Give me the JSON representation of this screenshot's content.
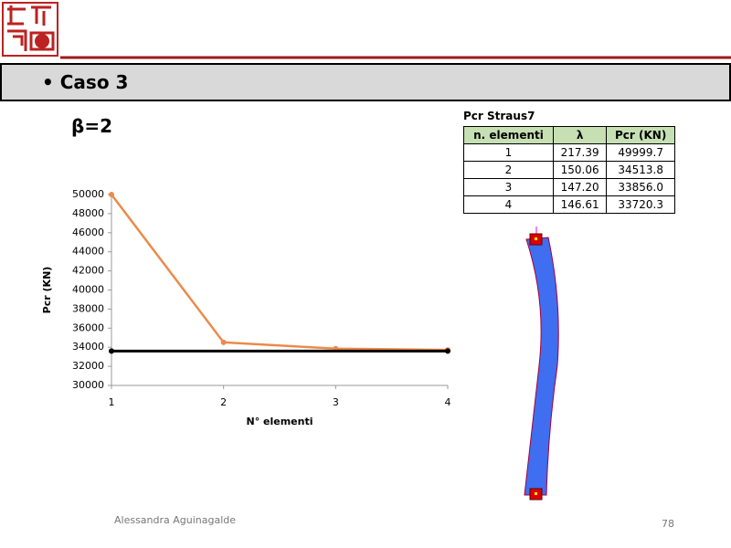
{
  "header": {
    "bullet": "Caso 3"
  },
  "beta_label": "β=2",
  "table": {
    "title": "Pcr Straus7",
    "columns": [
      "n. elementi",
      "λ",
      "Pcr (KN)"
    ],
    "rows": [
      [
        "1",
        "217.39",
        "49999.7"
      ],
      [
        "2",
        "150.06",
        "34513.8"
      ],
      [
        "3",
        "147.20",
        "33856.0"
      ],
      [
        "4",
        "146.61",
        "33720.3"
      ]
    ]
  },
  "chart_data": {
    "type": "line",
    "ylabel": "Pcr (KN)",
    "xlabel": "N° elementi",
    "x": [
      1,
      2,
      3,
      4
    ],
    "series": [
      {
        "color": "#eb8a4a",
        "values": [
          49999.7,
          34513.8,
          33856.0,
          33720.3
        ]
      },
      {
        "color": "#000000",
        "values": [
          33600,
          33600,
          33600,
          33600
        ]
      }
    ],
    "xlim": [
      1,
      4
    ],
    "xticks": [
      1,
      2,
      3,
      4
    ],
    "ylim": [
      30000,
      50000
    ],
    "yticks": [
      30000,
      32000,
      34000,
      36000,
      38000,
      40000,
      42000,
      44000,
      46000,
      48000,
      50000
    ]
  },
  "footer": {
    "author": "Alessandra Aguinagalde",
    "page": "78"
  }
}
